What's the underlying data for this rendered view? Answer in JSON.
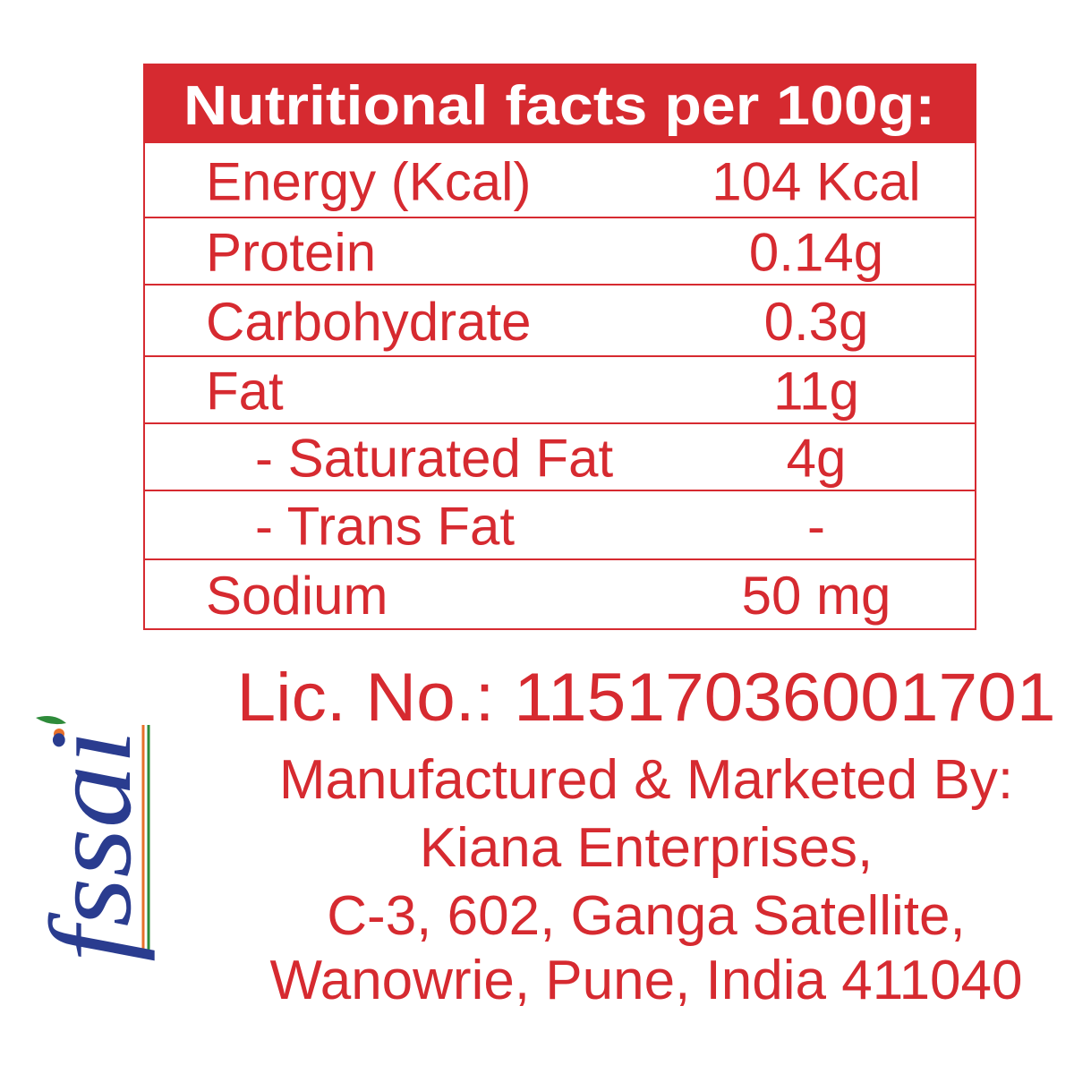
{
  "table": {
    "title": "Nutritional facts per 100g:",
    "rows": [
      [
        "Energy (Kcal)",
        "104 Kcal"
      ],
      [
        "Protein",
        "0.14g"
      ],
      [
        "Carbohydrate",
        "0.3g"
      ],
      [
        "Fat",
        "11g"
      ],
      [
        "- Saturated Fat",
        "4g"
      ],
      [
        "- Trans Fat",
        "-"
      ],
      [
        "Sodium",
        "50 mg"
      ]
    ]
  },
  "license": "Lic. No.: 11517036001701",
  "manufacturer": [
    "Manufactured & Marketed By:",
    "Kiana Enterprises,",
    "C-3, 602, Ganga Satellite,",
    "Wanowrie, Pune, India 411040"
  ],
  "logo": "fssai"
}
